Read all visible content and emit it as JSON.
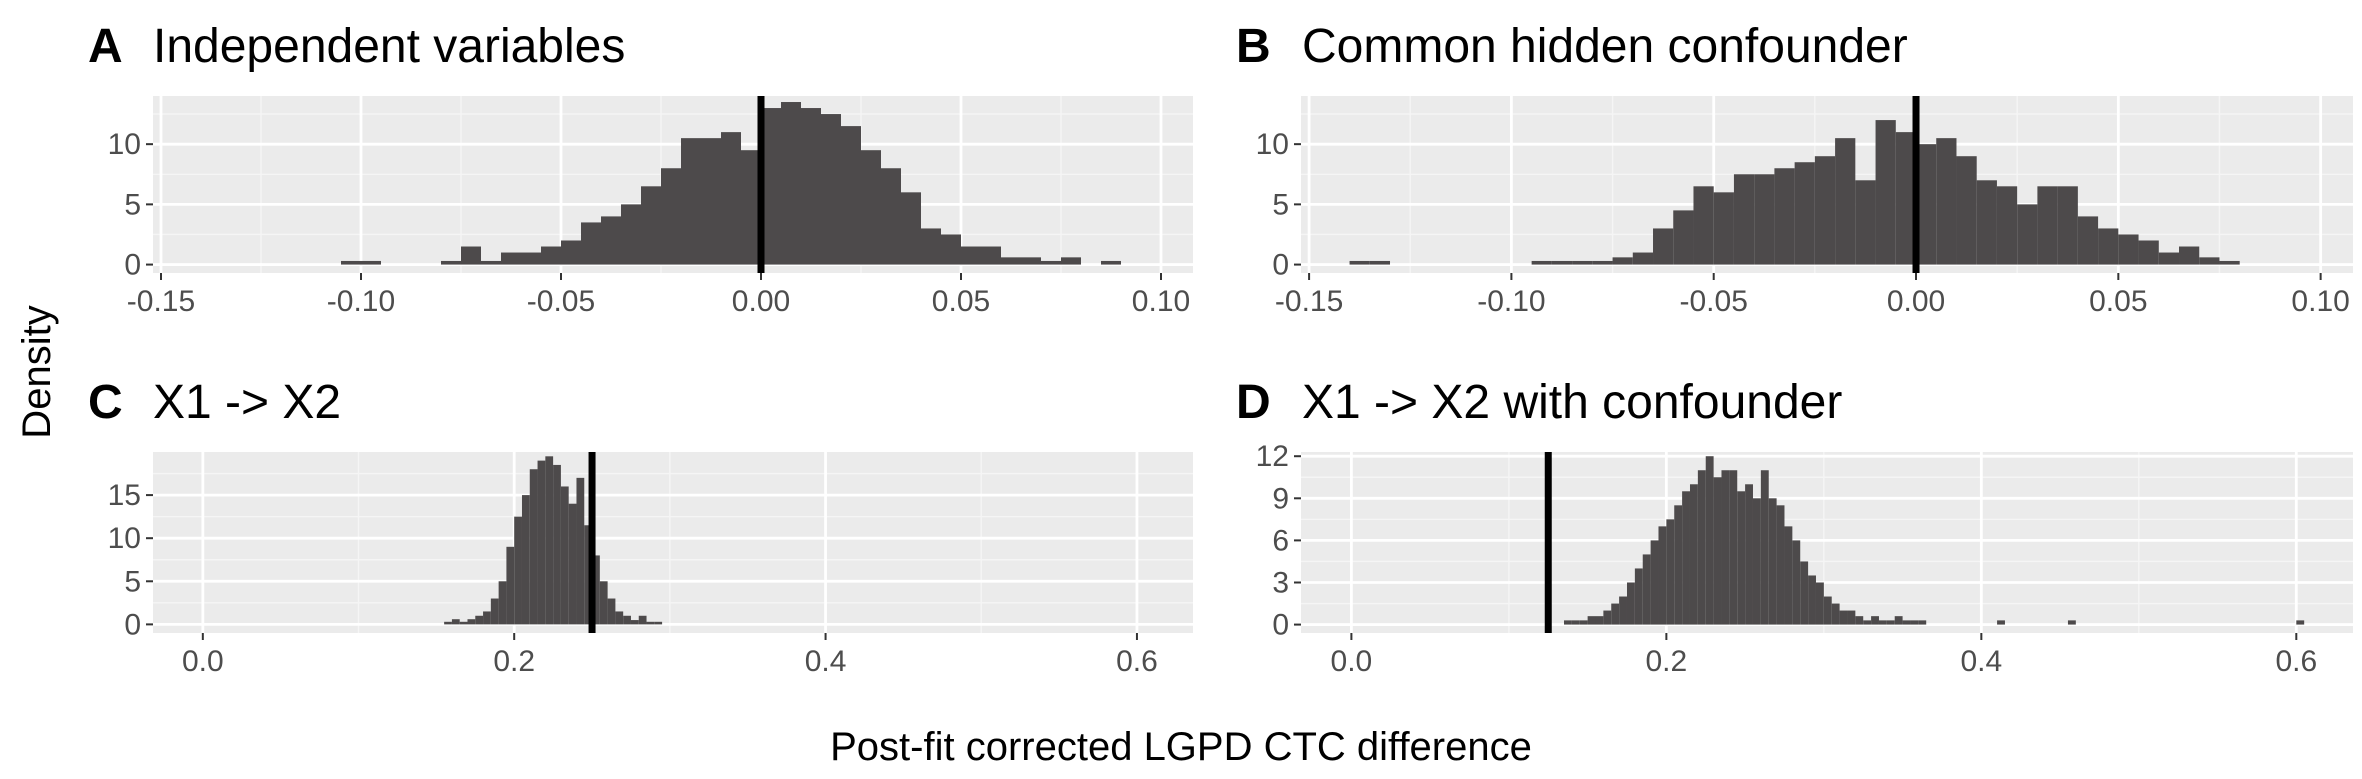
{
  "figure": {
    "ylabel": "Density",
    "xlabel": "Post-fit corrected LGPD CTC difference",
    "style": {
      "panel_background": "#ebebeb",
      "grid_major": "#ffffff",
      "bar_fill": "#4d4a4b",
      "vline_color": "#000000",
      "tick_label_color": "#4d4d4d"
    }
  },
  "chart_data": [
    {
      "type": "bar",
      "panel": "A",
      "title": "Independent variables",
      "xlim": [
        -0.152,
        0.108
      ],
      "ylim": [
        -0.7,
        14.0
      ],
      "xticks": [
        -0.15,
        -0.1,
        -0.05,
        0.0,
        0.05,
        0.1
      ],
      "xtick_labels": [
        "-0.15",
        "-0.10",
        "-0.05",
        "0.00",
        "0.05",
        "0.10"
      ],
      "yticks": [
        0,
        5,
        10
      ],
      "ytick_labels": [
        "0",
        "5",
        "10"
      ],
      "bin_width": 0.005,
      "bin_start": -0.105,
      "values": [
        0.3,
        0.3,
        0,
        0,
        0,
        0.3,
        1.5,
        0.3,
        1.0,
        1.0,
        1.5,
        2.0,
        3.5,
        4.0,
        5.0,
        6.5,
        8.0,
        10.5,
        10.5,
        11.0,
        9.5,
        13.0,
        13.5,
        13.0,
        12.5,
        11.5,
        9.5,
        8.0,
        6.0,
        3.0,
        2.5,
        1.5,
        1.5,
        0.6,
        0.6,
        0.3,
        0.6,
        0,
        0.3
      ],
      "vline": 0.0
    },
    {
      "type": "bar",
      "panel": "B",
      "title": "Common hidden confounder",
      "xlim": [
        -0.152,
        0.108
      ],
      "ylim": [
        -0.7,
        14.0
      ],
      "xticks": [
        -0.15,
        -0.1,
        -0.05,
        0.0,
        0.05,
        0.1
      ],
      "xtick_labels": [
        "-0.15",
        "-0.10",
        "-0.05",
        "0.00",
        "0.05",
        "0.10"
      ],
      "yticks": [
        0,
        5,
        10
      ],
      "ytick_labels": [
        "0",
        "5",
        "10"
      ],
      "bin_width": 0.005,
      "bin_start": -0.095,
      "values": [
        0.3,
        0.3,
        0.3,
        0.3,
        0.6,
        1.0,
        3.0,
        4.5,
        6.5,
        6.0,
        7.5,
        7.5,
        8.0,
        8.5,
        9.0,
        10.5,
        7.0,
        12.0,
        11.0,
        10.0,
        10.5,
        9.0,
        7.0,
        6.5,
        5.0,
        6.5,
        6.5,
        4.0,
        3.0,
        2.5,
        2.0,
        1.0,
        1.5,
        0.6,
        0.3
      ],
      "extra_bins": [
        {
          "x0": -0.14,
          "value": 0.3
        },
        {
          "x0": -0.135,
          "value": 0.3
        }
      ],
      "vline": 0.0
    },
    {
      "type": "bar",
      "panel": "C",
      "title": "X1 -> X2",
      "xlim": [
        -0.032,
        0.636
      ],
      "ylim": [
        -1.0,
        20.0
      ],
      "xticks": [
        0.0,
        0.2,
        0.4,
        0.6
      ],
      "xtick_labels": [
        "0.0",
        "0.2",
        "0.4",
        "0.6"
      ],
      "yticks": [
        0,
        5,
        10,
        15
      ],
      "ytick_labels": [
        "0",
        "5",
        "10",
        "15"
      ],
      "bin_width": 0.005,
      "bin_start": 0.155,
      "values": [
        0.3,
        0.6,
        0.3,
        0.6,
        1.0,
        1.5,
        3.0,
        5.0,
        9.0,
        12.5,
        15.0,
        18.0,
        19.0,
        19.5,
        18.5,
        16.0,
        14.0,
        17.0,
        11.5,
        8.0,
        5.0,
        3.0,
        1.5,
        1.0,
        0.5,
        1.0,
        0.3,
        0.3
      ],
      "vline": 0.25
    },
    {
      "type": "bar",
      "panel": "D",
      "title": "X1 -> X2 with confounder",
      "xlim": [
        -0.032,
        0.636
      ],
      "ylim": [
        -0.6,
        12.3
      ],
      "xticks": [
        0.0,
        0.2,
        0.4,
        0.6
      ],
      "xtick_labels": [
        "0.0",
        "0.2",
        "0.4",
        "0.6"
      ],
      "yticks": [
        0,
        3,
        6,
        9,
        12
      ],
      "ytick_labels": [
        "0",
        "3",
        "6",
        "9",
        "12"
      ],
      "bin_width": 0.005,
      "bin_start": 0.135,
      "values": [
        0.3,
        0.3,
        0.3,
        0.6,
        0.6,
        1.0,
        1.5,
        2.0,
        3.0,
        4.0,
        5.0,
        6.0,
        7.0,
        7.5,
        8.5,
        9.5,
        10.0,
        11.0,
        12.0,
        10.5,
        11.0,
        11.0,
        9.5,
        10.0,
        9.0,
        11.0,
        9.0,
        8.5,
        7.0,
        6.0,
        4.5,
        3.5,
        3.0,
        2.0,
        1.5,
        1.0,
        1.0,
        0.6,
        0.3,
        0.6,
        0.3,
        0.3,
        0.6,
        0.3,
        0.3,
        0.3
      ],
      "extra_bins": [
        {
          "x0": 0.41,
          "value": 0.3
        },
        {
          "x0": 0.455,
          "value": 0.3
        },
        {
          "x0": 0.6,
          "value": 0.3
        }
      ],
      "vline": 0.125
    }
  ]
}
